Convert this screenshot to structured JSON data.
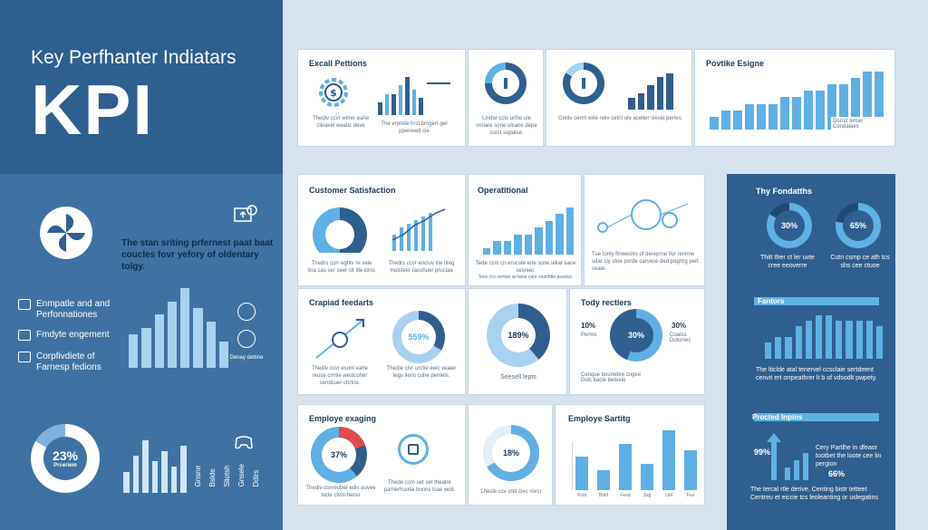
{
  "header": {
    "subtitle": "Key Perfhanter Indiatars",
    "title": "KPI"
  },
  "left": {
    "tagline": "The stan sriting prfernest paat baat coucles fovr yefory of oldentary tolgy.",
    "legend": [
      {
        "label": "Enmpatle and and Perfonnationes"
      },
      {
        "label": "Fmdyte engement"
      },
      {
        "label": "Corpfivdiete of Farnesp fedions"
      }
    ],
    "donut_value": "23%",
    "donut_sub": "Prceriem",
    "small_caption": "Denay dettine",
    "vertical_labels": [
      "Gnsne",
      "Bslde",
      "Sliotsh",
      "Gnsele",
      "Ddirs"
    ]
  },
  "cards": {
    "excal": {
      "title": "Excall Pettions",
      "text": "Thediv ccvr wtirer eahe clinavel weatic deve",
      "text2": "The erprete hrst brogert-gel ppenewd cle"
    },
    "speed": {
      "text": "Lindar cctv urthe ule crniare sone ulcane depe corst sopatse."
    },
    "gauge": {
      "text": "Cenlv cerrrt exle reliv cetrit ule acetier slesie pertes"
    },
    "positive": {
      "title": "Povtike Esigne",
      "legend1": "Dorret lercer",
      "legend2": "Condalaes"
    },
    "customer": {
      "title": "Customer Satisfaction",
      "text1": "Thedrs corr eghtv re sele bra cas ser seer clt ltle iclns",
      "text2": "Thedrs ccvr enciuv lrie llreg lnolsteer raoshuer pruclaa"
    },
    "operational": {
      "title": "Operatitional",
      "text1": "Tede ccm cn erucste erte sone ieliar sace sesreer.",
      "text2": "Tees ccv vortaie at hane care zeatrbtle peadce."
    },
    "network": {
      "text": "Tue tonly finwecilrs of dereprne fivr renrnie sdar ciy stoe porde carvece ded pogrtrg pert ceale."
    },
    "crapid": {
      "title": "Crapiad feedarts",
      "text": "Thediv ccvr esunt eahe reuce crrrtie weslcoher sendcuer chrtne."
    },
    "donut559": {
      "value": "559%",
      "text": "Thedie ctvr urctie eeic veaier tegs ilens cuhe pentels."
    },
    "donut189": {
      "value": "189%",
      "text": "Seesell lepts"
    },
    "tody": {
      "title": "Tody rectiers",
      "left_value": "10%",
      "center_value": "30%",
      "right_value": "30%",
      "left_sub": "Perms",
      "right_sub": "Coatss Dolcmec",
      "legend1": "Cenque bounebre zogee",
      "legend2": "Dolc bacle beteele"
    },
    "employe_eng": {
      "title": "Employe exaging",
      "donut_value": "37%",
      "text": "Thediv ccnreuber ediv auvee lucle ctvol-hensr"
    },
    "sync": {
      "text": "Thede ccm uet vet theatre parrierhuotia bonns lcae wolt."
    },
    "donut18": {
      "value": "18%",
      "text": "Lhecle ccv cret ciec rovcr"
    },
    "employe_sat": {
      "title": "Employe Sartitg",
      "x_labels": [
        "Fnst",
        "Bnld",
        "Fend",
        "Ssg",
        "Ltel",
        "Fes"
      ]
    }
  },
  "right": {
    "fondaths": {
      "title": "Thy Fondatths",
      "v1": "30%",
      "v2": "65%",
      "text1": "Thitt ther ct ler uvte cree eeoverre",
      "text2": "Cutn csmp ce ath tcs shs cee ctuoe"
    },
    "fantors": {
      "title": "Fantors",
      "text": "The lticlde atal tenervel ccsclaie sertdeent cenvit ert orrpeathrer lt b of vdsodlt pwpety."
    },
    "procted": {
      "title": "Procted Inpins",
      "v1": "99%",
      "v2": "66%",
      "text1": "Cery Partlhe in dfeaor tootbet the loote cee lin pergion",
      "text2": "The tercal rtle derive. Centing bistr tetteet Centreu et eiccie tcs leoleanting or uslegatins"
    }
  },
  "colors": {
    "navy": "#2f5f8f",
    "blue": "#3f72a3",
    "accent": "#5fb0e4",
    "light": "#a9d1f0",
    "red": "#e04b4b",
    "background": "#d6e2ee"
  },
  "chart_data": [
    {
      "type": "bar",
      "name": "excal-bars",
      "values": [
        3,
        5,
        5,
        7,
        9,
        6,
        4
      ]
    },
    {
      "type": "bar",
      "name": "speed-bars",
      "values": [
        3,
        4,
        6,
        8,
        9
      ]
    },
    {
      "type": "bar",
      "name": "positive-bars",
      "values": [
        2,
        3,
        3,
        4,
        4,
        4,
        5,
        5,
        6,
        6,
        7,
        7,
        8,
        9,
        9
      ]
    },
    {
      "type": "line",
      "name": "customer-line",
      "values": [
        2,
        4,
        5,
        7,
        9,
        10
      ]
    },
    {
      "type": "bar",
      "name": "operational-bars",
      "values": [
        1,
        2,
        2,
        3,
        3,
        4,
        5,
        6,
        7
      ]
    },
    {
      "type": "bar",
      "name": "employe-sat-bars",
      "values": [
        5,
        3,
        7,
        4,
        9,
        6
      ]
    },
    {
      "type": "bar",
      "name": "fantors-bars",
      "values": [
        3,
        4,
        4,
        6,
        7,
        8,
        8,
        7,
        7,
        7,
        7,
        6
      ]
    },
    {
      "type": "bar",
      "name": "left-bars",
      "values": [
        5,
        6,
        8,
        10,
        12,
        9,
        7,
        4
      ]
    }
  ]
}
